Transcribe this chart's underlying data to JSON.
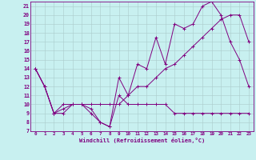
{
  "xlabel": "Windchill (Refroidissement éolien,°C)",
  "bg_color": "#c8f0f0",
  "line_color": "#800080",
  "grid_color": "#aacccc",
  "xlim": [
    -0.5,
    23.5
  ],
  "ylim": [
    7,
    21.5
  ],
  "xticks": [
    0,
    1,
    2,
    3,
    4,
    5,
    6,
    7,
    8,
    9,
    10,
    11,
    12,
    13,
    14,
    15,
    16,
    17,
    18,
    19,
    20,
    21,
    22,
    23
  ],
  "yticks": [
    7,
    8,
    9,
    10,
    11,
    12,
    13,
    14,
    15,
    16,
    17,
    18,
    19,
    20,
    21
  ],
  "series1_x": [
    0,
    1,
    2,
    3,
    4,
    5,
    6,
    7,
    8,
    9,
    10,
    11,
    12,
    13,
    14,
    15,
    16,
    17,
    18,
    19,
    20,
    21,
    22,
    23
  ],
  "series1_y": [
    14,
    12,
    9,
    9,
    10,
    10,
    9,
    8,
    7.5,
    11,
    10,
    10,
    10,
    10,
    10,
    9,
    9,
    9,
    9,
    9,
    9,
    9,
    9,
    9
  ],
  "series2_x": [
    0,
    1,
    2,
    3,
    4,
    5,
    6,
    7,
    8,
    9,
    10,
    11,
    12,
    13,
    14,
    15,
    16,
    17,
    18,
    19,
    20,
    21,
    22,
    23
  ],
  "series2_y": [
    14,
    12,
    9,
    9.5,
    10,
    10,
    9.5,
    8,
    7.5,
    13,
    11,
    14.5,
    14,
    17.5,
    14.5,
    19,
    18.5,
    19,
    21,
    21.5,
    20,
    17,
    15,
    12
  ],
  "series3_x": [
    0,
    1,
    2,
    3,
    4,
    5,
    6,
    7,
    8,
    9,
    10,
    11,
    12,
    13,
    14,
    15,
    16,
    17,
    18,
    19,
    20,
    21,
    22,
    23
  ],
  "series3_y": [
    14,
    12,
    9,
    10,
    10,
    10,
    10,
    10,
    10,
    10,
    11,
    12,
    12,
    13,
    14,
    14.5,
    15.5,
    16.5,
    17.5,
    18.5,
    19.5,
    20,
    20,
    17
  ]
}
